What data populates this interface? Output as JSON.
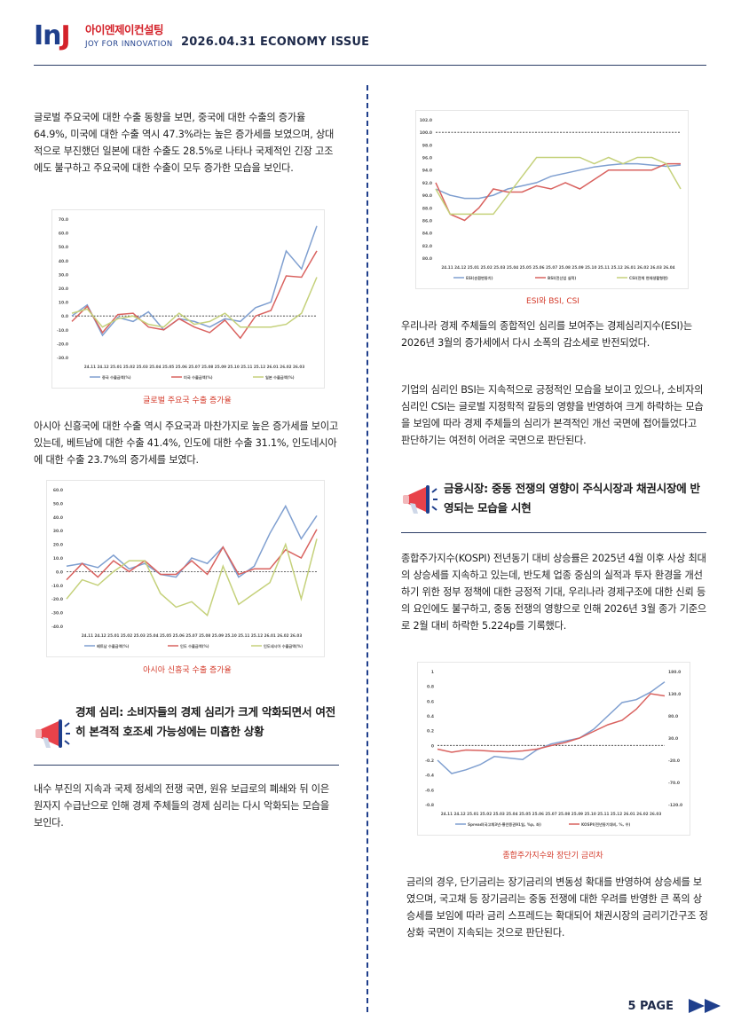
{
  "header": {
    "logo_mark": "InJ",
    "logo_kr": "아이엔제이컨설팅",
    "logo_en": "JOY FOR INNOVATION",
    "issue": "2026.04.31 ECONOMY ISSUE"
  },
  "colors": {
    "navy": "#1f3f8c",
    "accent_red": "#d43a2a",
    "rule": "#2c3e66"
  },
  "left": {
    "para1": "글로벌 주요국에 대한 수출 동향을 보면, 중국에 대한 수출의 증가율 64.9%, 미국에 대한 수출 역시 47.3%라는 높은 증가세를 보였으며, 상대적으로 부진했던 일본에 대한 수출도 28.5%로 나타나 국제적인 긴장 고조에도 불구하고 주요국에 대한 수출이 모두 증가한 모습을 보인다.",
    "caption1": "글로벌 주요국 수출 증가율",
    "para2": "아시아 신흥국에 대한 수출 역시 주요국과 마찬가지로 높은 증가세를 보이고 있는데, 베트남에 대한 수출 41.4%, 인도에 대한 수출 31.1%, 인도네시아에 대한 수출 23.7%의 증가세를 보였다.",
    "caption2": "아시아 신흥국 수출 증가율",
    "section_title": "경제 심리: 소비자들의 경제 심리가 크게 악화되면서 여전히 본격적 호조세 가능성에는 미흡한 상황",
    "para3": "내수 부진의 지속과 국제 정세의 전쟁 국면, 원유 보급로의 폐쇄와 뒤 이은 원자지 수급난으로 인해 경제 주체들의 경제 심리는 다시 악화되는 모습을 보인다."
  },
  "right": {
    "caption3": "ESI와 BSI, CSI",
    "para4": "우리나라 경제 주체들의 종합적인 심리를 보여주는 경제심리지수(ESI)는 2026년 3월의 증가세에서 다시 소폭의 감소세로 반전되었다.",
    "para5": "기업의 심리인 BSI는 지속적으로 긍정적인 모습을 보이고 있으나, 소비자의 심리인 CSI는 글로벌 지정학적 갈등의 영향을 반영하여 크게 하락하는 모습을 보임에 따라 경제 주체들의 심리가 본격적인 개선 국면에 접어들었다고 판단하기는 여전히 어려운 국면으로 판단된다.",
    "section_title": "금융시장: 중동 전쟁의 영향이 주식시장과 채권시장에 반영되는 모습을 시현",
    "para6": "종합주가지수(KOSPI) 전년동기 대비 상승률은 2025년 4월 이후 사상 최대의 상승세를 지속하고 있는데, 반도체 업종 중심의 실적과 투자 환경을 개선하기 위한 정부 정책에 대한 긍정적 기대, 우리나라 경제구조에 대한 신뢰 등의 요인에도 불구하고, 중동 전쟁의 영향으로 인해 2026년 3월 종가 기준으로 2월 대비 하락한 5.224p를 기록했다.",
    "caption4": "종합주가지수와 장단기 금리차",
    "para7": "금리의 경우, 단기금리는 장기금리의 변동성 확대를 반영하여 상승세를 보였으며, 국고채 등 장기금리는 중동 전쟁에 대한 우려를 반영한 큰 폭의 상승세를 보임에 따라 금리 스프레드는 확대되어 채권시장의 금리기간구조 정상화 국면이 지속되는 것으로 판단된다."
  },
  "footer": {
    "page": "5 PAGE"
  },
  "chart_data": [
    {
      "type": "line",
      "categories": [
        "24.11",
        "24.12",
        "25.01",
        "25.02",
        "25.03",
        "25.04",
        "25.05",
        "25.06",
        "25.07",
        "25.08",
        "25.09",
        "25.10",
        "25.11",
        "25.12",
        "26.01",
        "26.02",
        "26.03"
      ],
      "ylim": [
        -30,
        70
      ],
      "yticks": [
        "70.0",
        "60.0",
        "50.0",
        "40.0",
        "30.0",
        "20.0",
        "10.0",
        "0.0",
        "-10.0",
        "-20.0",
        "-30.0"
      ],
      "series": [
        {
          "name": "중국 수출금액(%)",
          "color": "#7f9fd0",
          "values": [
            0,
            8,
            -14,
            -1,
            -4,
            3,
            -10,
            -2,
            -4,
            -8,
            -2,
            -4,
            6,
            10,
            47,
            34,
            65
          ]
        },
        {
          "name": "미국 수출금액(%)",
          "color": "#d9625f",
          "values": [
            -4,
            7,
            -12,
            1,
            2,
            -8,
            -10,
            -2,
            -8,
            -12,
            -3,
            -16,
            0,
            4,
            29,
            28,
            47
          ]
        },
        {
          "name": "일본 수출금액(%)",
          "color": "#c5d17b",
          "values": [
            2,
            5,
            -8,
            -2,
            0,
            -6,
            -8,
            2,
            -6,
            -4,
            2,
            -8,
            -8,
            -8,
            -6,
            2,
            28
          ]
        }
      ]
    },
    {
      "type": "line",
      "categories": [
        "24.11",
        "24.12",
        "25.01",
        "25.02",
        "25.03",
        "25.04",
        "25.05",
        "25.06",
        "25.07",
        "25.08",
        "25.09",
        "25.10",
        "25.11",
        "25.12",
        "26.01",
        "26.02",
        "26.03"
      ],
      "ylim": [
        -40,
        60
      ],
      "yticks": [
        "60.0",
        "50.0",
        "40.0",
        "30.0",
        "20.0",
        "10.0",
        "0.0",
        "-10.0",
        "-20.0",
        "-30.0",
        "-40.0"
      ],
      "series": [
        {
          "name": "베트남 수출금액(%)",
          "color": "#7f9fd0",
          "values": [
            4,
            6,
            3,
            12,
            2,
            6,
            -2,
            -4,
            10,
            6,
            18,
            -4,
            4,
            28,
            48,
            24,
            41
          ]
        },
        {
          "name": "인도 수출금액(%)",
          "color": "#d9625f",
          "values": [
            -6,
            6,
            -4,
            8,
            0,
            8,
            -2,
            -2,
            8,
            -2,
            18,
            -2,
            2,
            2,
            16,
            10,
            31
          ]
        },
        {
          "name": "인도네시아 수출금액(%)",
          "color": "#c5d17b",
          "values": [
            -20,
            -6,
            -10,
            0,
            8,
            8,
            -16,
            -26,
            -22,
            -32,
            4,
            -24,
            -16,
            -8,
            20,
            -20,
            24
          ]
        }
      ]
    },
    {
      "type": "line",
      "categories": [
        "24.11",
        "24.12",
        "25.01",
        "25.02",
        "25.03",
        "25.04",
        "25.05",
        "25.06",
        "25.07",
        "25.08",
        "25.09",
        "25.10",
        "25.11",
        "25.12",
        "26.01",
        "26.02",
        "26.03",
        "26.04"
      ],
      "ylim": [
        80,
        102
      ],
      "yticks": [
        "102.0",
        "100.0",
        "98.0",
        "96.0",
        "94.0",
        "92.0",
        "90.0",
        "88.0",
        "86.0",
        "84.0",
        "82.0",
        "80.0"
      ],
      "series": [
        {
          "name": "ESI(순환변동치)",
          "color": "#7f9fd0",
          "values": [
            91,
            90,
            89.5,
            89.5,
            90,
            91,
            91.5,
            92,
            93,
            93.5,
            94,
            94.5,
            94.8,
            95,
            95,
            94.8,
            94.6,
            94.8
          ]
        },
        {
          "name": "BSI(전산업 실적)",
          "color": "#d9625f",
          "values": [
            92,
            87,
            86,
            88,
            91,
            90.5,
            90.5,
            91.5,
            91,
            92,
            91,
            92.5,
            94,
            94,
            94,
            94,
            95,
            95
          ]
        },
        {
          "name": "CSI(전체 현재생활형편)",
          "color": "#c5d17b",
          "values": [
            91,
            87,
            87,
            87,
            87,
            90,
            93,
            96,
            96,
            96,
            96,
            95,
            96,
            95,
            96,
            96,
            95,
            91
          ]
        }
      ]
    },
    {
      "type": "line",
      "categories": [
        "24.11",
        "24.12",
        "25.01",
        "25.02",
        "25.03",
        "25.04",
        "25.05",
        "25.06",
        "25.07",
        "25.08",
        "25.09",
        "25.10",
        "25.11",
        "25.12",
        "26.01",
        "26.02",
        "26.03"
      ],
      "ylim": [
        -0.8,
        1
      ],
      "yticks": [
        "1",
        "0.8",
        "0.6",
        "0.4",
        "0.2",
        "0",
        "-0.2",
        "-0.4",
        "-0.6",
        "-0.8"
      ],
      "y2ticks": [
        "180.0",
        "130.0",
        "80.0",
        "30.0",
        "-20.0",
        "-70.0",
        "-120.0"
      ],
      "series": [
        {
          "name": "Spread(국고채3년-통안증권91일, %p, 좌)",
          "color": "#7f9fd0",
          "values": [
            -0.2,
            -0.38,
            -0.33,
            -0.26,
            -0.15,
            -0.17,
            -0.19,
            -0.06,
            0.02,
            0.06,
            0.1,
            0.22,
            0.4,
            0.58,
            0.62,
            0.72,
            0.86
          ]
        },
        {
          "name": "KOSPI(전년동기대비, %, 우)",
          "color": "#d9625f",
          "values": [
            5,
            -2,
            3,
            2,
            0,
            -1,
            1,
            5,
            13,
            20,
            30,
            45,
            60,
            70,
            95,
            130,
            125
          ]
        }
      ]
    }
  ]
}
